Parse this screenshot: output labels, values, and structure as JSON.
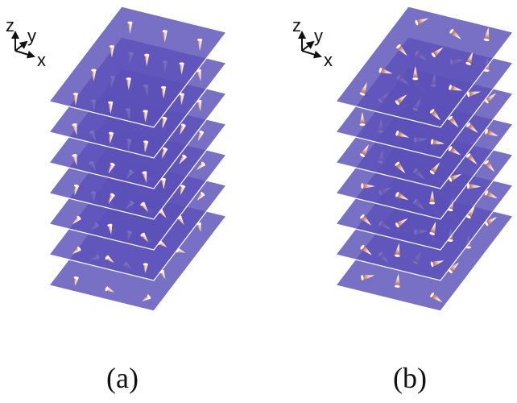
{
  "panels": [
    {
      "id": "a",
      "label": "(a)",
      "spin_mode": "normal",
      "layers": 7,
      "tilt": "none"
    },
    {
      "id": "b",
      "label": "(b)",
      "spin_mode": "inplane",
      "layers": 7,
      "tilt": "none"
    }
  ],
  "axes": {
    "z": "z",
    "y": "y",
    "x": "x"
  },
  "colors": {
    "layer_fill": "#5a50b8",
    "layer_edge": "#ffffff",
    "cone_light": "#fff6ec",
    "cone_mid": "#f0c8b0",
    "cone_dark": "#a25248",
    "ink": "#111111"
  }
}
